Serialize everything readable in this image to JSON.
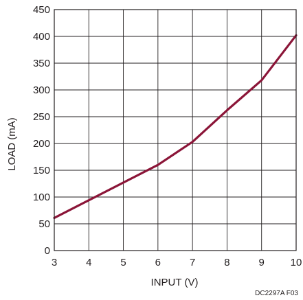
{
  "chart_data": {
    "type": "line",
    "title": "",
    "xlabel": "INPUT (V)",
    "ylabel": "LOAD (mA)",
    "xlim": [
      3,
      10
    ],
    "ylim": [
      0,
      450
    ],
    "x_ticks": [
      3,
      4,
      5,
      6,
      7,
      8,
      9,
      10
    ],
    "y_ticks": [
      0,
      50,
      100,
      150,
      200,
      250,
      300,
      350,
      400,
      450
    ],
    "grid": true,
    "legend": "none",
    "series": [
      {
        "color": "#8b1538",
        "x": [
          3,
          4,
          5,
          6,
          7,
          8,
          9,
          10
        ],
        "y": [
          61,
          94,
          127,
          160,
          203,
          262,
          318,
          402
        ]
      }
    ],
    "figure_id": "DC2297A F03"
  }
}
